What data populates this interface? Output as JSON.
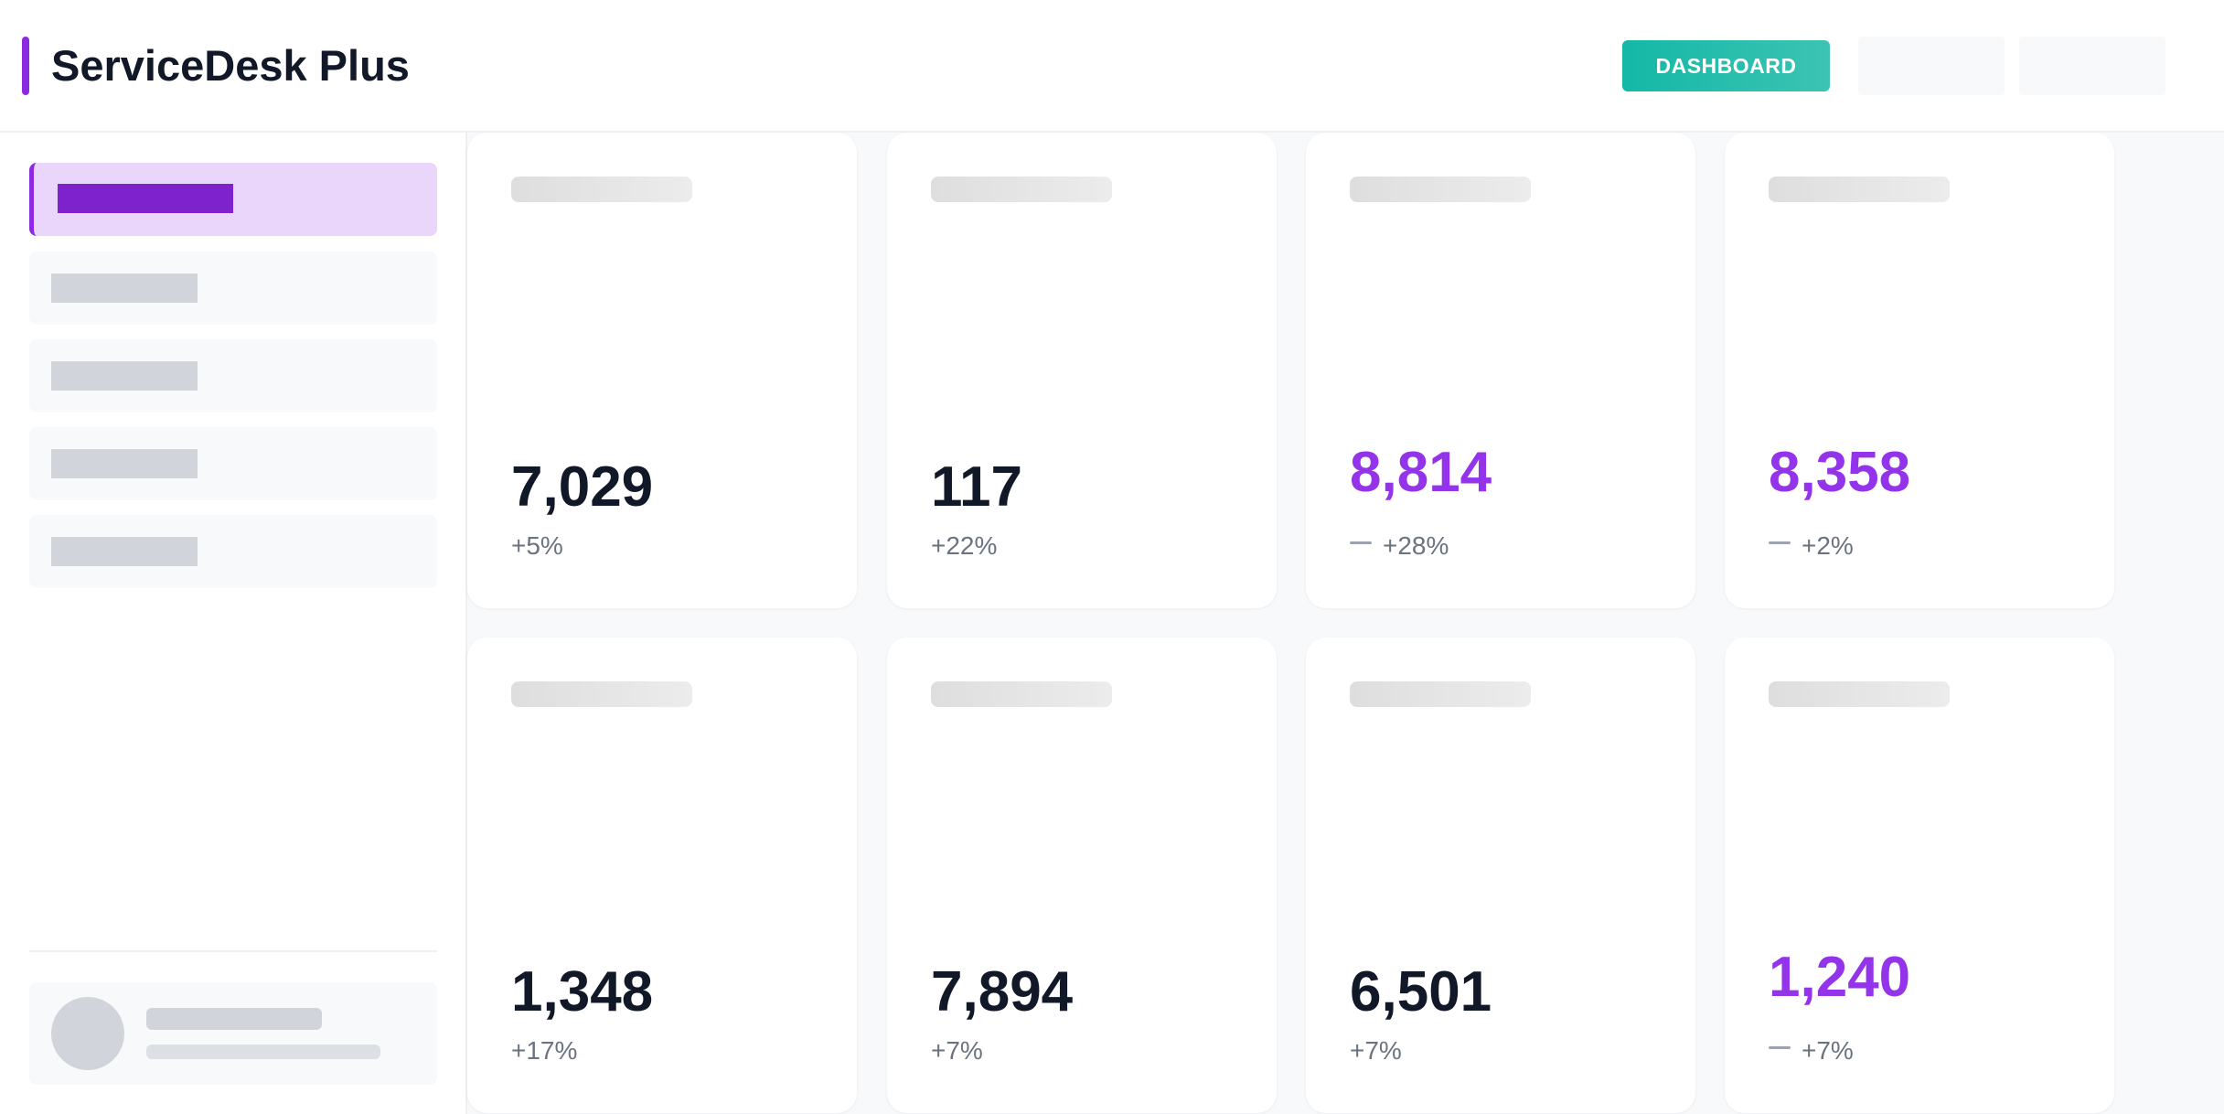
{
  "header": {
    "app_title": "ServiceDesk Plus",
    "dashboard_button": "DASHBOARD"
  },
  "colors": {
    "accent_purple": "#8a2be2",
    "highlight_value": "#9333ea",
    "button_teal": "#14b8a6",
    "active_nav_bg": "#ead5fb",
    "main_bg": "#f8f9fb"
  },
  "sidebar": {
    "active_index": 0,
    "item_count": 5
  },
  "cards": [
    {
      "value": "7,029",
      "change": "+5%",
      "highlight": false
    },
    {
      "value": "117",
      "change": "+22%",
      "highlight": false
    },
    {
      "value": "8,814",
      "change": "+28%",
      "highlight": true,
      "trend_icon": "dash-icon"
    },
    {
      "value": "8,358",
      "change": "+2%",
      "highlight": true,
      "trend_icon": "dash-icon"
    },
    {
      "value": "1,348",
      "change": "+17%",
      "highlight": false
    },
    {
      "value": "7,894",
      "change": "+7%",
      "highlight": false
    },
    {
      "value": "6,501",
      "change": "+7%",
      "highlight": false
    },
    {
      "value": "1,240",
      "change": "+7%",
      "highlight": true,
      "trend_icon": "dash-icon"
    }
  ]
}
